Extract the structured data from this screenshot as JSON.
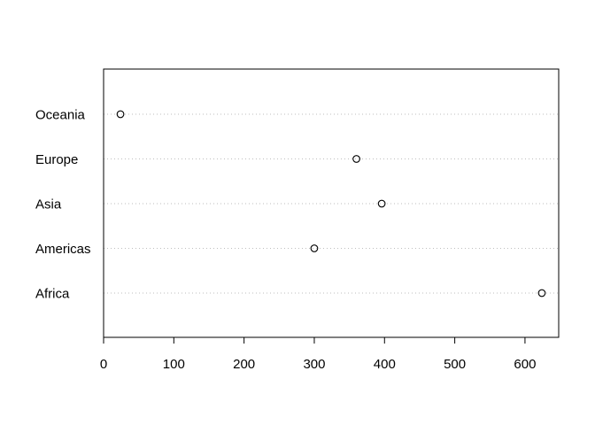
{
  "chart_data": {
    "type": "scatter",
    "subtype": "dotchart",
    "title": "",
    "xlabel": "",
    "ylabel": "",
    "categories": [
      "Africa",
      "Americas",
      "Asia",
      "Europe",
      "Oceania"
    ],
    "values": [
      624,
      300,
      396,
      360,
      24
    ],
    "xlim": [
      0,
      648
    ],
    "xticks": [
      0,
      100,
      200,
      300,
      400,
      500,
      600
    ],
    "grid": "dotted horizontal guide lines per category",
    "marker": "open circle",
    "colors": {
      "marker": "#000000",
      "guide": "#bebebe",
      "frame": "#000000"
    }
  }
}
